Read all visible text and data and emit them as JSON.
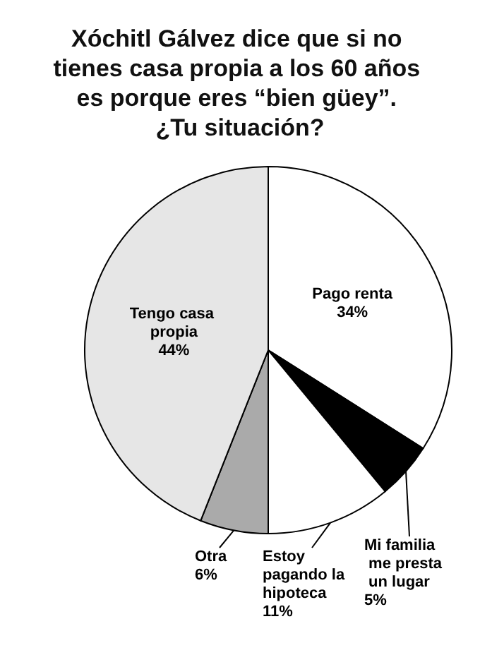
{
  "chart_data": {
    "type": "pie",
    "title": "Xóchitl Gálvez dice que si no tienes casa propia a los 60 años es porque eres “bien güey”. ¿Tu situación?",
    "categories": [
      "Pago renta",
      "Mi familia me presta un lugar",
      "Estoy pagando la hipoteca",
      "Otra",
      "Tengo casa propia"
    ],
    "values": [
      34,
      5,
      11,
      6,
      44
    ],
    "value_labels": [
      "34%",
      "5%",
      "11%",
      "6%",
      "44%"
    ],
    "colors": [
      "#ffffff",
      "#000000",
      "#ffffff",
      "#aaaaaa",
      "#e6e6e6"
    ],
    "legend": false
  }
}
